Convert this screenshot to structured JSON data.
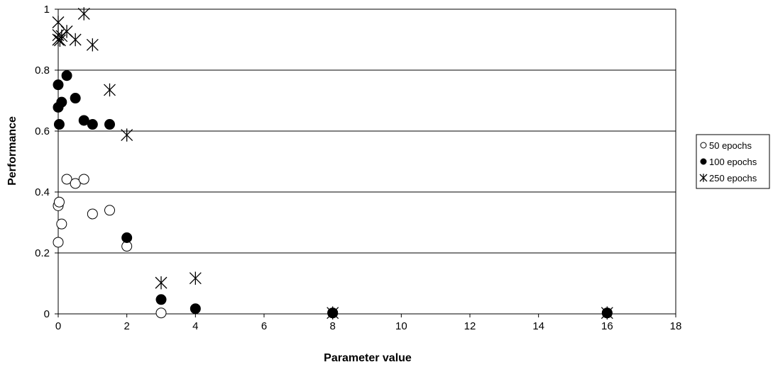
{
  "chart_data": {
    "type": "scatter",
    "title": "",
    "xlabel": "Parameter value",
    "ylabel": "Performance",
    "xlim": [
      0,
      18
    ],
    "ylim": [
      0,
      1
    ],
    "xticks": [
      0,
      2,
      4,
      6,
      8,
      10,
      12,
      14,
      16,
      18
    ],
    "yticks": [
      0,
      0.2,
      0.4,
      0.6,
      0.8,
      1
    ],
    "ytick_labels": [
      "0",
      "0.2",
      "0.4",
      "0.6",
      "0.8",
      "1"
    ],
    "grid": "horizontal",
    "legend": "right",
    "series": [
      {
        "name": "50 epochs",
        "marker": "open-circle",
        "points": [
          {
            "x": 0,
            "y": 0.235
          },
          {
            "x": 0,
            "y": 0.355
          },
          {
            "x": 0.03,
            "y": 0.367
          },
          {
            "x": 0.1,
            "y": 0.295
          },
          {
            "x": 0.25,
            "y": 0.442
          },
          {
            "x": 0.5,
            "y": 0.428
          },
          {
            "x": 0.75,
            "y": 0.442
          },
          {
            "x": 1,
            "y": 0.328
          },
          {
            "x": 1.5,
            "y": 0.34
          },
          {
            "x": 2,
            "y": 0.222
          },
          {
            "x": 3,
            "y": 0.003
          },
          {
            "x": 8,
            "y": 0.003
          },
          {
            "x": 16,
            "y": 0.003
          }
        ]
      },
      {
        "name": "100 epochs",
        "marker": "filled-circle",
        "points": [
          {
            "x": 0,
            "y": 0.752
          },
          {
            "x": 0,
            "y": 0.678
          },
          {
            "x": 0.03,
            "y": 0.622
          },
          {
            "x": 0.1,
            "y": 0.695
          },
          {
            "x": 0.25,
            "y": 0.782
          },
          {
            "x": 0.5,
            "y": 0.708
          },
          {
            "x": 0.75,
            "y": 0.635
          },
          {
            "x": 1,
            "y": 0.622
          },
          {
            "x": 1.5,
            "y": 0.622
          },
          {
            "x": 2,
            "y": 0.25
          },
          {
            "x": 3,
            "y": 0.047
          },
          {
            "x": 4,
            "y": 0.017
          },
          {
            "x": 8,
            "y": 0.003
          },
          {
            "x": 16,
            "y": 0.003
          }
        ]
      },
      {
        "name": "250 epochs",
        "marker": "asterisk",
        "points": [
          {
            "x": 0,
            "y": 0.957
          },
          {
            "x": 0,
            "y": 0.915
          },
          {
            "x": 0,
            "y": 0.9
          },
          {
            "x": 0.05,
            "y": 0.898
          },
          {
            "x": 0.1,
            "y": 0.912
          },
          {
            "x": 0.25,
            "y": 0.927
          },
          {
            "x": 0.5,
            "y": 0.9
          },
          {
            "x": 0.75,
            "y": 0.985
          },
          {
            "x": 1,
            "y": 0.883
          },
          {
            "x": 1.5,
            "y": 0.735
          },
          {
            "x": 2,
            "y": 0.587
          },
          {
            "x": 3,
            "y": 0.102
          },
          {
            "x": 4,
            "y": 0.117
          },
          {
            "x": 8,
            "y": 0.003
          },
          {
            "x": 16,
            "y": 0.003
          }
        ]
      }
    ]
  }
}
